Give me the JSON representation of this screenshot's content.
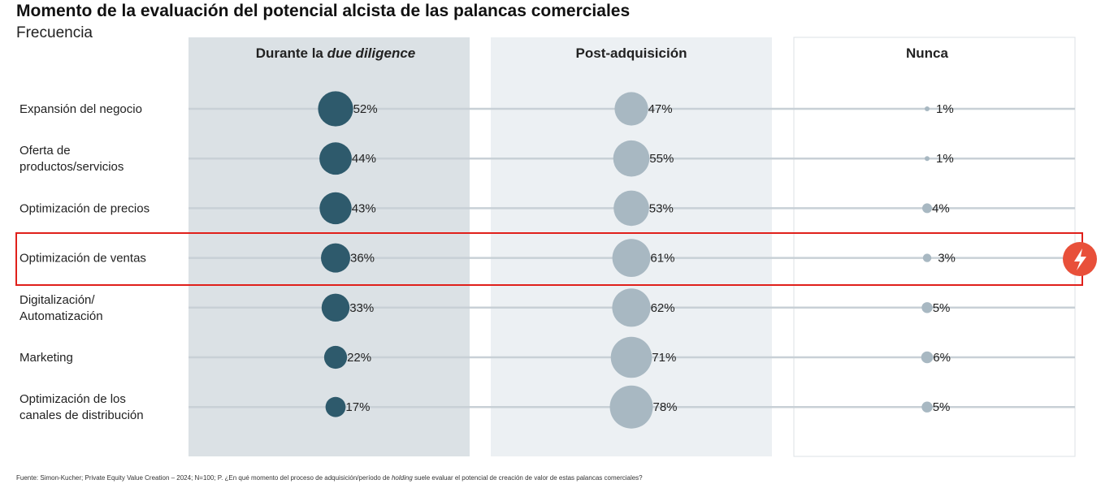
{
  "title": "Momento de la evaluación del potencial alcista de las palancas comerciales",
  "subtitle": "Frecuencia",
  "source": {
    "prefix": "Fuente: Simon-Kucher; Private Equity Value Creation – 2024; N=100; P. ¿En qué momento del proceso de adquisición/período de ",
    "italic": "holding",
    "suffix": " suele evaluar el potencial de creación de valor de estas palancas comerciales?"
  },
  "colors": {
    "col1_bg": "#dbe1e5",
    "col2_bg": "#ecf0f3",
    "col3_border": "#dde2e6",
    "line": "#c8d0d6",
    "dark_bubble": "#2e5a6c",
    "light_bubble": "#a8b8c2",
    "highlight": "#e0201b",
    "alert_badge": "#e8503a"
  },
  "alert_icon": "lightning-icon",
  "chart_data": {
    "type": "bubble-matrix",
    "title": "Momento de la evaluación del potencial alcista de las palancas comerciales",
    "subtitle": "Frecuencia",
    "unit": "%",
    "columns": [
      {
        "name_plain": "Durante la ",
        "name_italic": "due diligence",
        "values": [
          52,
          44,
          43,
          36,
          33,
          22,
          17
        ]
      },
      {
        "name_plain": "Post-adquisición",
        "name_italic": "",
        "values": [
          47,
          55,
          53,
          61,
          62,
          71,
          78
        ]
      },
      {
        "name_plain": "Nunca",
        "name_italic": "",
        "values": [
          1,
          1,
          4,
          3,
          5,
          6,
          5
        ]
      }
    ],
    "categories": [
      [
        "Expansión del negocio"
      ],
      [
        "Oferta de",
        "productos/servicios"
      ],
      [
        "Optimización de precios"
      ],
      [
        "Optimización de ventas"
      ],
      [
        "Digitalización/",
        "Automatización"
      ],
      [
        "Marketing"
      ],
      [
        "Optimización de los",
        "canales de distribución"
      ]
    ],
    "highlighted_category": 3
  }
}
